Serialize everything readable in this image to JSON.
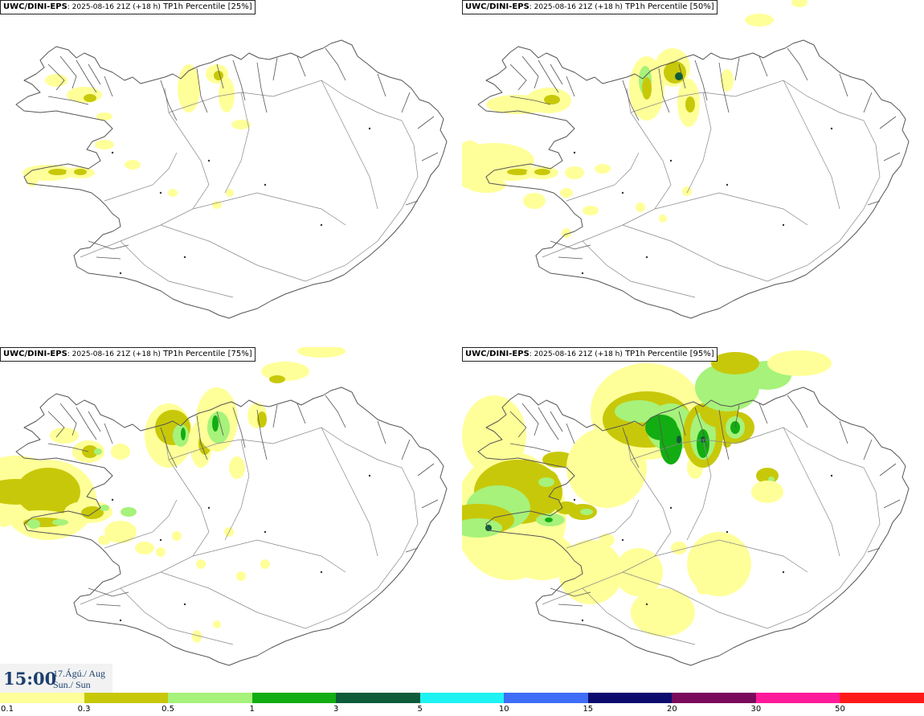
{
  "panels": [
    {
      "model": "UWC/DINI-EPS",
      "run": ": 2025-08-16 21Z (+18 h)",
      "field": "TP1h Percentile [25%]"
    },
    {
      "model": "UWC/DINI-EPS",
      "run": ": 2025-08-16 21Z (+18 h)",
      "field": "TP1h Percentile [50%]"
    },
    {
      "model": "UWC/DINI-EPS",
      "run": ": 2025-08-16 21Z (+18 h)",
      "field": "TP1h Percentile [75%]"
    },
    {
      "model": "UWC/DINI-EPS",
      "run": ": 2025-08-16 21Z (+18 h)",
      "field": "TP1h Percentile [95%]"
    }
  ],
  "valid_time": {
    "time": "15:00",
    "date_line1": "17.Ágú./ Aug",
    "date_line2": "Sun./ Sun"
  },
  "legend": {
    "labels": [
      "0.1",
      "0.3",
      "0.5",
      "1",
      "3",
      "5",
      "10",
      "15",
      "20",
      "30",
      "50"
    ],
    "colors": [
      "#ffff99",
      "#c8c80a",
      "#a6f27a",
      "#12ad12",
      "#0e5c3a",
      "#1ff2f2",
      "#3d6ef5",
      "#0b0c6e",
      "#7a0a5c",
      "#ff1a9a",
      "#ff1a1a"
    ]
  },
  "colors": {
    "coast": "#555555",
    "light_yellow": "#ffff99",
    "olive": "#c8c80a",
    "light_green": "#a6f27a",
    "green": "#12ad12",
    "dark_green": "#0e5c3a"
  }
}
